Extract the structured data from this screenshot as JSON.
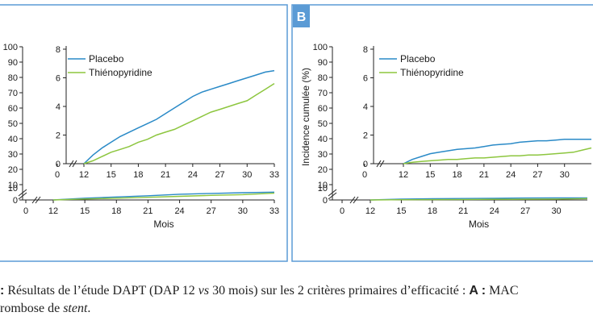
{
  "panel_b_label": "B",
  "caption": {
    "lead": ":",
    "text1": " Résultats de l’étude DAPT (DAP 12 ",
    "vs": "vs",
    "text2": " 30 mois) sur les 2 critères primaires d’efficacité : ",
    "a_label": "A :",
    "text3": " MAC",
    "line2_start": "rombose de ",
    "stent": "stent",
    "line2_end": "."
  },
  "colors": {
    "placebo": "#2a8ac7",
    "thienopyridine": "#8dc63f",
    "panel_border": "#5b9bd5",
    "badge": "#5b9bd5"
  },
  "chart_data": [
    {
      "type": "line",
      "panel": "A",
      "ylabel": "",
      "xlabel": "Mois",
      "legend": [
        "Placebo",
        "Thiénopyridine"
      ],
      "legend_position": "top-left",
      "y_ticks_outer": [
        "100",
        "90",
        "80",
        "70",
        "60",
        "50",
        "40",
        "30",
        "20",
        "10",
        "0"
      ],
      "inset": {
        "x_ticks": [
          "0",
          "12",
          "15",
          "18",
          "21",
          "24",
          "27",
          "30",
          "33"
        ],
        "y_ticks": [
          "0",
          "2",
          "4",
          "6",
          "8"
        ],
        "ylim": [
          0,
          8
        ],
        "xlim": [
          12,
          33
        ],
        "series": [
          {
            "name": "Placebo",
            "x": [
              12,
              13,
              14,
              15,
              16,
              17,
              18,
              19,
              20,
              21,
              22,
              23,
              24,
              25,
              26,
              27,
              28,
              29,
              30,
              31,
              32,
              33
            ],
            "values": [
              0,
              0.6,
              1.1,
              1.5,
              1.9,
              2.2,
              2.5,
              2.8,
              3.1,
              3.5,
              3.9,
              4.3,
              4.7,
              5.0,
              5.2,
              5.4,
              5.6,
              5.8,
              6.0,
              6.2,
              6.4,
              6.5
            ]
          },
          {
            "name": "Thiénopyridine",
            "x": [
              12,
              13,
              14,
              15,
              16,
              17,
              18,
              19,
              20,
              21,
              22,
              23,
              24,
              25,
              26,
              27,
              28,
              29,
              30,
              31,
              32,
              33
            ],
            "values": [
              0,
              0.2,
              0.5,
              0.8,
              1.0,
              1.2,
              1.5,
              1.7,
              2.0,
              2.2,
              2.4,
              2.7,
              3.0,
              3.3,
              3.6,
              3.8,
              4.0,
              4.2,
              4.4,
              4.8,
              5.2,
              5.6
            ]
          }
        ]
      },
      "main": {
        "x_ticks": [
          "0",
          "12",
          "15",
          "18",
          "21",
          "24",
          "27",
          "30",
          "33"
        ],
        "y_ticks": [
          "0",
          "10"
        ],
        "series": [
          {
            "name": "Placebo",
            "x": [
              12,
              15,
              18,
              21,
              24,
              27,
              30,
              33
            ],
            "values": [
              0,
              1.5,
              2.5,
              3.5,
              4.7,
              5.4,
              6.0,
              6.5
            ]
          },
          {
            "name": "Thiénopyridine",
            "x": [
              12,
              15,
              18,
              21,
              24,
              27,
              30,
              33
            ],
            "values": [
              0,
              0.8,
              1.5,
              2.2,
              3.0,
              3.8,
              4.4,
              5.6
            ]
          }
        ]
      }
    },
    {
      "type": "line",
      "panel": "B",
      "ylabel": "Incidence cumulée (%)",
      "xlabel": "Mois",
      "legend": [
        "Placebo",
        "Thiénopyridine"
      ],
      "legend_position": "top-left",
      "y_ticks_outer": [
        "100",
        "90",
        "80",
        "70",
        "60",
        "50",
        "40",
        "30",
        "20",
        "10",
        "0"
      ],
      "inset": {
        "x_ticks": [
          "0",
          "12",
          "15",
          "18",
          "21",
          "24",
          "27",
          "30"
        ],
        "y_ticks": [
          "0",
          "2",
          "4",
          "6",
          "8"
        ],
        "ylim": [
          0,
          8
        ],
        "xlim": [
          12,
          33
        ],
        "series": [
          {
            "name": "Placebo",
            "x": [
              12,
              13,
              14,
              15,
              16,
              17,
              18,
              19,
              20,
              21,
              22,
              23,
              24,
              25,
              26,
              27,
              28,
              29,
              30,
              31,
              32,
              33
            ],
            "values": [
              0,
              0.3,
              0.5,
              0.7,
              0.8,
              0.9,
              1.0,
              1.05,
              1.1,
              1.2,
              1.3,
              1.35,
              1.4,
              1.5,
              1.55,
              1.6,
              1.6,
              1.65,
              1.7,
              1.7,
              1.7,
              1.7
            ]
          },
          {
            "name": "Thiénopyridine",
            "x": [
              12,
              13,
              14,
              15,
              16,
              17,
              18,
              19,
              20,
              21,
              22,
              23,
              24,
              25,
              26,
              27,
              28,
              29,
              30,
              31,
              32,
              33
            ],
            "values": [
              0,
              0.1,
              0.15,
              0.2,
              0.25,
              0.3,
              0.3,
              0.35,
              0.4,
              0.4,
              0.45,
              0.5,
              0.55,
              0.55,
              0.6,
              0.6,
              0.65,
              0.7,
              0.75,
              0.8,
              0.95,
              1.1
            ]
          }
        ]
      },
      "main": {
        "x_ticks": [
          "0",
          "12",
          "15",
          "18",
          "21",
          "24",
          "27",
          "30"
        ],
        "y_ticks": [
          "0",
          "10"
        ],
        "series": [
          {
            "name": "Placebo",
            "x": [
              12,
              15,
              18,
              21,
              24,
              27,
              30,
              33
            ],
            "values": [
              0,
              0.7,
              1.0,
              1.2,
              1.4,
              1.6,
              1.7,
              1.7
            ]
          },
          {
            "name": "Thiénopyridine",
            "x": [
              12,
              15,
              18,
              21,
              24,
              27,
              30,
              33
            ],
            "values": [
              0,
              0.2,
              0.3,
              0.4,
              0.55,
              0.6,
              0.75,
              1.1
            ]
          }
        ]
      }
    }
  ]
}
